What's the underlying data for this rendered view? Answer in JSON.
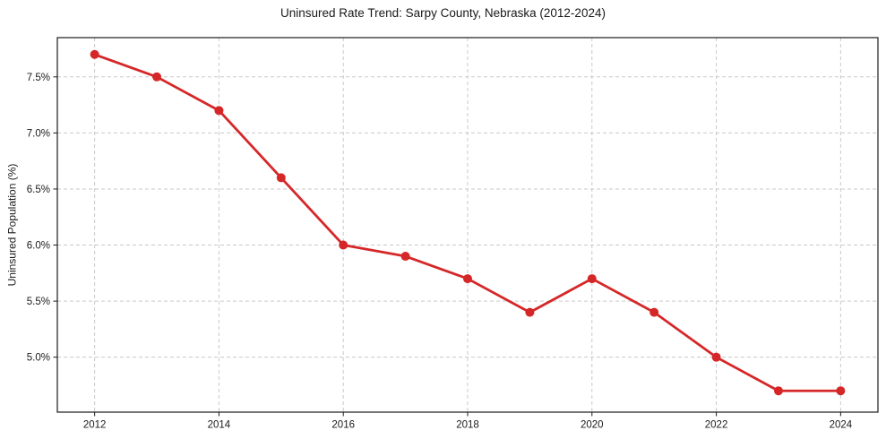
{
  "chart_data": {
    "type": "line",
    "title": "Uninsured Rate Trend: Sarpy County, Nebraska (2012-2024)",
    "xlabel": "",
    "ylabel": "Uninsured Population (%)",
    "x": [
      2012,
      2013,
      2014,
      2015,
      2016,
      2017,
      2018,
      2019,
      2020,
      2021,
      2022,
      2023,
      2024
    ],
    "values": [
      7.7,
      7.5,
      7.2,
      6.6,
      6.0,
      5.9,
      5.7,
      5.4,
      5.7,
      5.4,
      5.0,
      4.7,
      4.7
    ],
    "xlim": [
      2011.4,
      2024.6
    ],
    "ylim": [
      4.51,
      7.85
    ],
    "x_ticks": [
      2012,
      2014,
      2016,
      2018,
      2020,
      2022,
      2024
    ],
    "x_tick_labels": [
      "2012",
      "2014",
      "2016",
      "2018",
      "2020",
      "2022",
      "2024"
    ],
    "y_ticks": [
      5.0,
      5.5,
      6.0,
      6.5,
      7.0,
      7.5
    ],
    "y_tick_labels": [
      "5.0%",
      "5.5%",
      "6.0%",
      "6.5%",
      "7.0%",
      "7.5%"
    ],
    "grid": true,
    "legend": "none",
    "line_color": "#d62728",
    "grid_color": "#c9c9c9",
    "spine_color": "#1a1a1a",
    "marker": "circle"
  }
}
